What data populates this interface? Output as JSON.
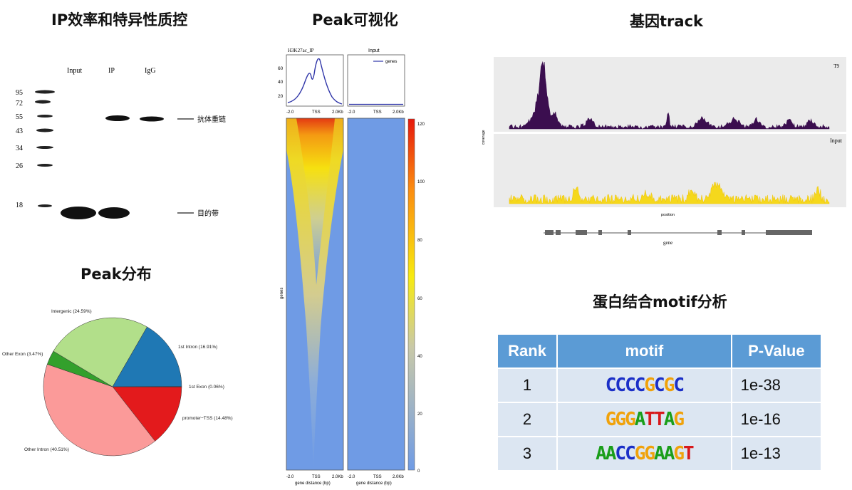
{
  "titles": {
    "ip_qc": "IP效率和特异性质控",
    "peak_vis": "Peak可视化",
    "gene_track": "基因track",
    "peak_dist": "Peak分布",
    "motif": "蛋白结合motif分析"
  },
  "western_blot": {
    "lanes": [
      "Input",
      "IP",
      "IgG"
    ],
    "markers": [
      "95",
      "72",
      "55",
      "43",
      "34",
      "26",
      "18"
    ],
    "annotations": [
      "抗体重链",
      "目的带"
    ]
  },
  "pie": {
    "colors": {
      "intergenic": "#b2df8a",
      "intron1": "#1f78b4",
      "exon1": "#a6cee3",
      "promoter": "#e31a1c",
      "other_intron": "#fb9a99",
      "other_exon": "#33a02c"
    },
    "labels": {
      "intergenic": "Intergenic (24.59%)",
      "intron1": "1st Intron (16.91%)",
      "exon1": "1st Exon (0.06%)",
      "promoter": "promoter−TSS (14.48%)",
      "other_intron": "Other Intron (40.51%)",
      "other_exon": "Other Exon (3.47%)"
    }
  },
  "heatmap": {
    "panel_titles": [
      "H3K27ac_IP",
      "Input"
    ],
    "legend_label": "genes",
    "profile_yticks": [
      "60",
      "40",
      "20"
    ],
    "xticks": [
      "-2.0",
      "TSS",
      "2.0Kb"
    ],
    "ylabel": "genes",
    "xlabel": "gene distance (bp)",
    "colorbar_ticks": [
      "120",
      "100",
      "80",
      "60",
      "40",
      "20",
      "0"
    ]
  },
  "track": {
    "tracks": [
      "T9",
      "Input"
    ],
    "ylabel": "coverage",
    "xlabel": "position",
    "gene_label": "gene"
  },
  "motif_table": {
    "headers": [
      "Rank",
      "motif",
      "P-Value"
    ],
    "rows": [
      {
        "rank": "1",
        "motif": "CCCCGCGC",
        "pvalue": "1e-38"
      },
      {
        "rank": "2",
        "motif": "GGGATTAG",
        "pvalue": "1e-16"
      },
      {
        "rank": "3",
        "motif": "AACCGGAAGT",
        "pvalue": "1e-13"
      }
    ]
  }
}
